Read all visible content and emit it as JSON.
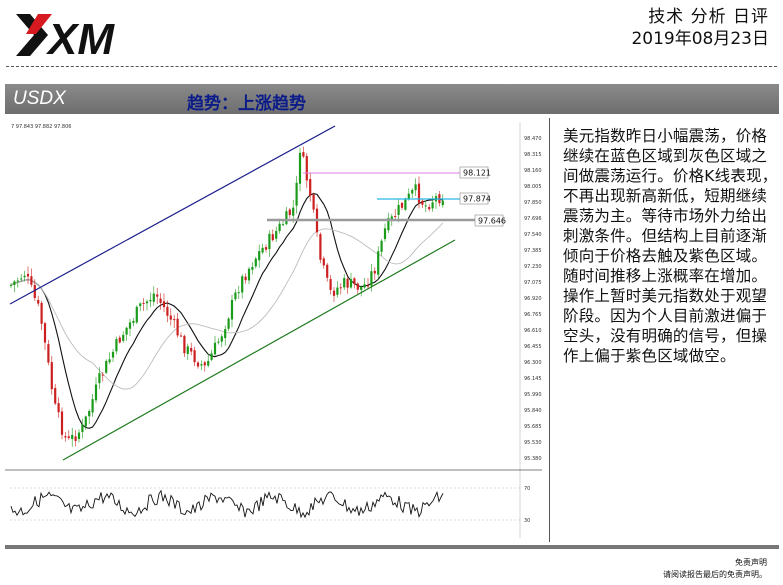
{
  "header": {
    "brand": "XM",
    "title": "技术 分析 日评",
    "date": "2019年08月23日"
  },
  "section": {
    "symbol": "USDX",
    "trend": "趋势：上涨趋势"
  },
  "chart": {
    "info_line": "7 97.843 97.882 97.806",
    "levels": [
      "98.121",
      "97.874",
      "97.646"
    ],
    "price_axis": [
      "98.470",
      "98.315",
      "98.160",
      "98.005",
      "97.850",
      "97.696",
      "97.540",
      "97.385",
      "97.230",
      "97.075",
      "96.920",
      "96.765",
      "96.610",
      "96.455",
      "96.300",
      "96.145",
      "95.990",
      "95.840",
      "95.685",
      "95.530",
      "95.380"
    ],
    "osc_axis": [
      "70",
      "30"
    ],
    "colors": {
      "up": "#1a9b1a",
      "down": "#cc1f1f",
      "channel_top": "#1b1f8c",
      "channel_bottom": "#1f7a1f",
      "level_pink": "#e27be0",
      "level_cyan": "#27b7e6",
      "level_gray": "#9a9a9a"
    }
  },
  "commentary": "美元指数昨日小幅震荡，价格继续在蓝色区域到灰色区域之间做震荡运行。价格K线表现，不再出现新高新低，短期继续震荡为主。等待市场外力给出刺激条件。但结构上目前逐渐倾向于价格去触及紫色区域。随时间推移上涨概率在增加。操作上暂时美元指数处于观望阶段。因为个人目前激进偏于空头，没有明确的信号，但操作上偏于紫色区域做空。",
  "disclaimer": {
    "line1": "免责声明",
    "line2": "请阅读报告最后的免责声明。"
  }
}
